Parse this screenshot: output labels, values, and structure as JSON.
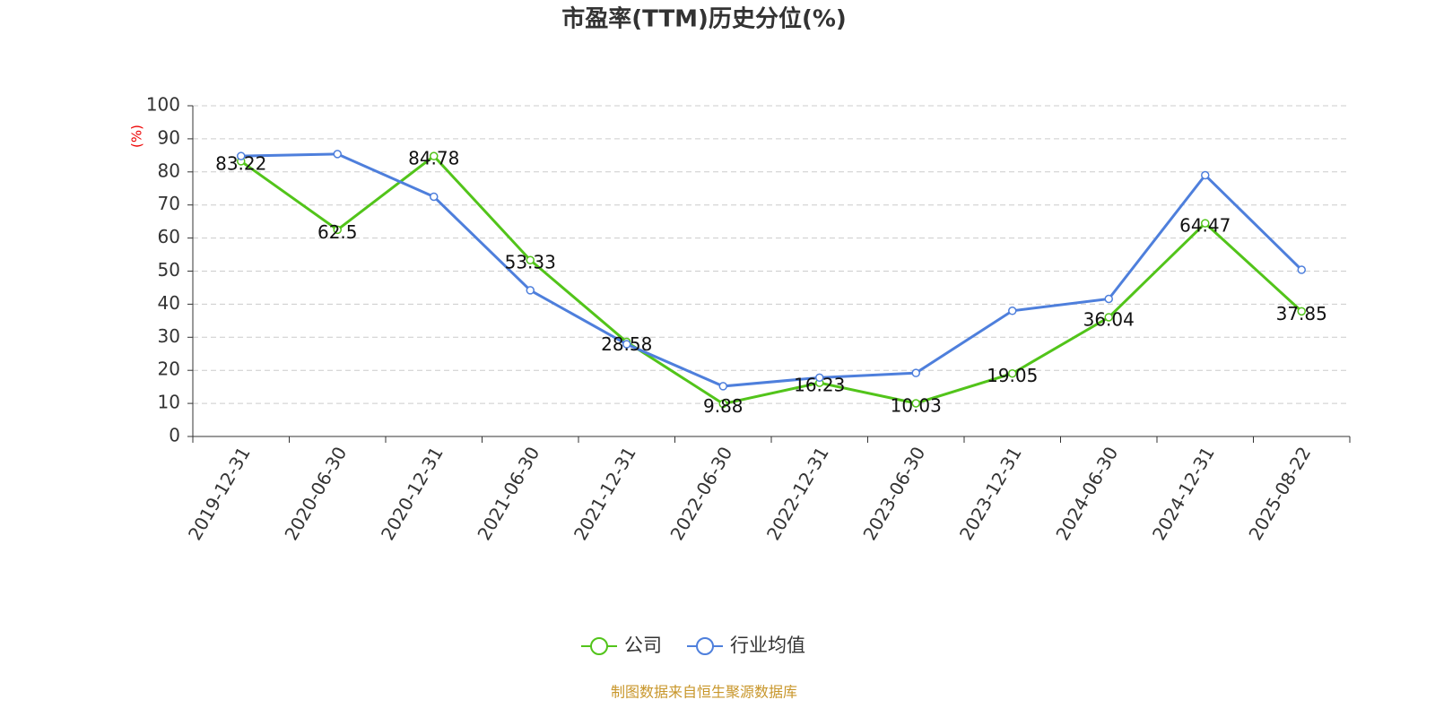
{
  "chart_data": {
    "type": "line",
    "title": "市盈率(TTM)历史分位(%)",
    "y_label": "(%)",
    "categories": [
      "2019-12-31",
      "2020-06-30",
      "2020-12-31",
      "2021-06-30",
      "2021-12-31",
      "2022-06-30",
      "2022-12-31",
      "2023-06-30",
      "2023-12-31",
      "2024-06-30",
      "2024-12-31",
      "2025-08-22"
    ],
    "series": [
      {
        "name": "公司",
        "color": "#52c41a",
        "values": [
          83.22,
          62.5,
          84.78,
          53.33,
          28.58,
          9.88,
          16.23,
          10.03,
          19.05,
          36.04,
          64.47,
          37.85
        ],
        "show_labels": true
      },
      {
        "name": "行业均值",
        "color": "#4e7fdc",
        "values": [
          84.8,
          85.4,
          72.5,
          44.2,
          27.9,
          15.2,
          17.8,
          19.2,
          38.0,
          41.6,
          79.0,
          50.4
        ],
        "show_labels": false
      }
    ],
    "ylim": [
      0,
      100
    ],
    "yticks": [
      0,
      10,
      20,
      30,
      40,
      50,
      60,
      70,
      80,
      90,
      100
    ],
    "grid": true,
    "legend": "bottom",
    "source": "制图数据来自恒生聚源数据库"
  }
}
